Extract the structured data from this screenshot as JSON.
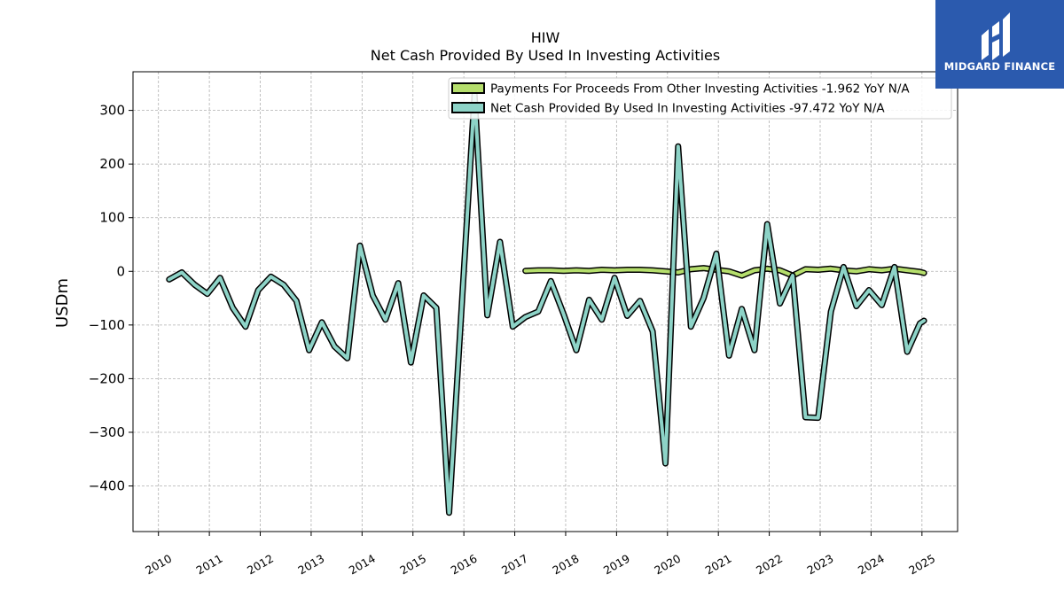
{
  "logo": {
    "text": "MIDGARD FINANCE",
    "bg_color": "#2b5aae"
  },
  "chart_data": {
    "type": "line",
    "title": "HIW",
    "subtitle": "Net Cash Provided By Used In Investing Activities",
    "xlabel": "",
    "ylabel": "USDm",
    "ylim": [
      -485,
      372
    ],
    "xlim": [
      2009.5,
      2025.7
    ],
    "xticks": [
      "2010",
      "2011",
      "2012",
      "2013",
      "2014",
      "2015",
      "2016",
      "2017",
      "2018",
      "2019",
      "2020",
      "2021",
      "2022",
      "2023",
      "2024",
      "2025"
    ],
    "yticks": [
      300,
      200,
      100,
      0,
      -100,
      -200,
      -300,
      -400
    ],
    "ytick_labels": [
      "300",
      "200",
      "100",
      "0",
      "−100",
      "−200",
      "−300",
      "−400"
    ],
    "grid": true,
    "legend_position": "top-right",
    "series": [
      {
        "name": "Payments For Proceeds From Other Investing Activities  -1.962 YoY N/A",
        "color": "#b5de6c",
        "points": [
          [
            2017.21,
            1
          ],
          [
            2017.46,
            2
          ],
          [
            2017.71,
            2
          ],
          [
            2017.96,
            1
          ],
          [
            2018.21,
            2
          ],
          [
            2018.46,
            1
          ],
          [
            2018.71,
            3
          ],
          [
            2018.96,
            2
          ],
          [
            2019.21,
            3
          ],
          [
            2019.46,
            3
          ],
          [
            2019.71,
            2
          ],
          [
            2019.96,
            0
          ],
          [
            2020.21,
            -2
          ],
          [
            2020.46,
            4
          ],
          [
            2020.71,
            6
          ],
          [
            2020.96,
            3
          ],
          [
            2021.21,
            0
          ],
          [
            2021.46,
            -8
          ],
          [
            2021.71,
            2
          ],
          [
            2021.96,
            5
          ],
          [
            2022.21,
            2
          ],
          [
            2022.46,
            -8
          ],
          [
            2022.71,
            4
          ],
          [
            2022.96,
            3
          ],
          [
            2023.21,
            5
          ],
          [
            2023.46,
            2
          ],
          [
            2023.71,
            0
          ],
          [
            2023.96,
            4
          ],
          [
            2024.21,
            2
          ],
          [
            2024.46,
            5
          ],
          [
            2024.71,
            2
          ],
          [
            2024.96,
            -1
          ],
          [
            2025.04,
            -3
          ]
        ]
      },
      {
        "name": "Net Cash Provided By Used In Investing Activities  -97.472 YoY N/A",
        "color": "#8dd3c7",
        "points": [
          [
            2010.21,
            -15
          ],
          [
            2010.46,
            -2
          ],
          [
            2010.71,
            -25
          ],
          [
            2010.96,
            -42
          ],
          [
            2011.21,
            -12
          ],
          [
            2011.46,
            -68
          ],
          [
            2011.71,
            -103
          ],
          [
            2011.96,
            -35
          ],
          [
            2012.21,
            -10
          ],
          [
            2012.46,
            -25
          ],
          [
            2012.71,
            -55
          ],
          [
            2012.96,
            -147
          ],
          [
            2013.21,
            -95
          ],
          [
            2013.46,
            -140
          ],
          [
            2013.71,
            -162
          ],
          [
            2013.96,
            48
          ],
          [
            2014.21,
            -45
          ],
          [
            2014.46,
            -90
          ],
          [
            2014.71,
            -22
          ],
          [
            2014.96,
            -170
          ],
          [
            2015.21,
            -45
          ],
          [
            2015.46,
            -68
          ],
          [
            2015.71,
            -450
          ],
          [
            2015.96,
            -60
          ],
          [
            2016.21,
            330
          ],
          [
            2016.46,
            -82
          ],
          [
            2016.71,
            55
          ],
          [
            2016.96,
            -103
          ],
          [
            2017.21,
            -85
          ],
          [
            2017.46,
            -75
          ],
          [
            2017.71,
            -18
          ],
          [
            2017.96,
            -80
          ],
          [
            2018.21,
            -147
          ],
          [
            2018.46,
            -53
          ],
          [
            2018.71,
            -90
          ],
          [
            2018.96,
            -12
          ],
          [
            2019.21,
            -83
          ],
          [
            2019.46,
            -55
          ],
          [
            2019.71,
            -112
          ],
          [
            2019.96,
            -358
          ],
          [
            2020.21,
            233
          ],
          [
            2020.46,
            -103
          ],
          [
            2020.71,
            -50
          ],
          [
            2020.96,
            33
          ],
          [
            2021.21,
            -157
          ],
          [
            2021.46,
            -70
          ],
          [
            2021.71,
            -147
          ],
          [
            2021.96,
            88
          ],
          [
            2022.21,
            -60
          ],
          [
            2022.46,
            -8
          ],
          [
            2022.71,
            -272
          ],
          [
            2022.96,
            -273
          ],
          [
            2023.21,
            -75
          ],
          [
            2023.46,
            8
          ],
          [
            2023.71,
            -65
          ],
          [
            2023.96,
            -35
          ],
          [
            2024.21,
            -63
          ],
          [
            2024.46,
            8
          ],
          [
            2024.71,
            -150
          ],
          [
            2024.96,
            -97
          ],
          [
            2025.04,
            -92
          ]
        ]
      }
    ]
  }
}
